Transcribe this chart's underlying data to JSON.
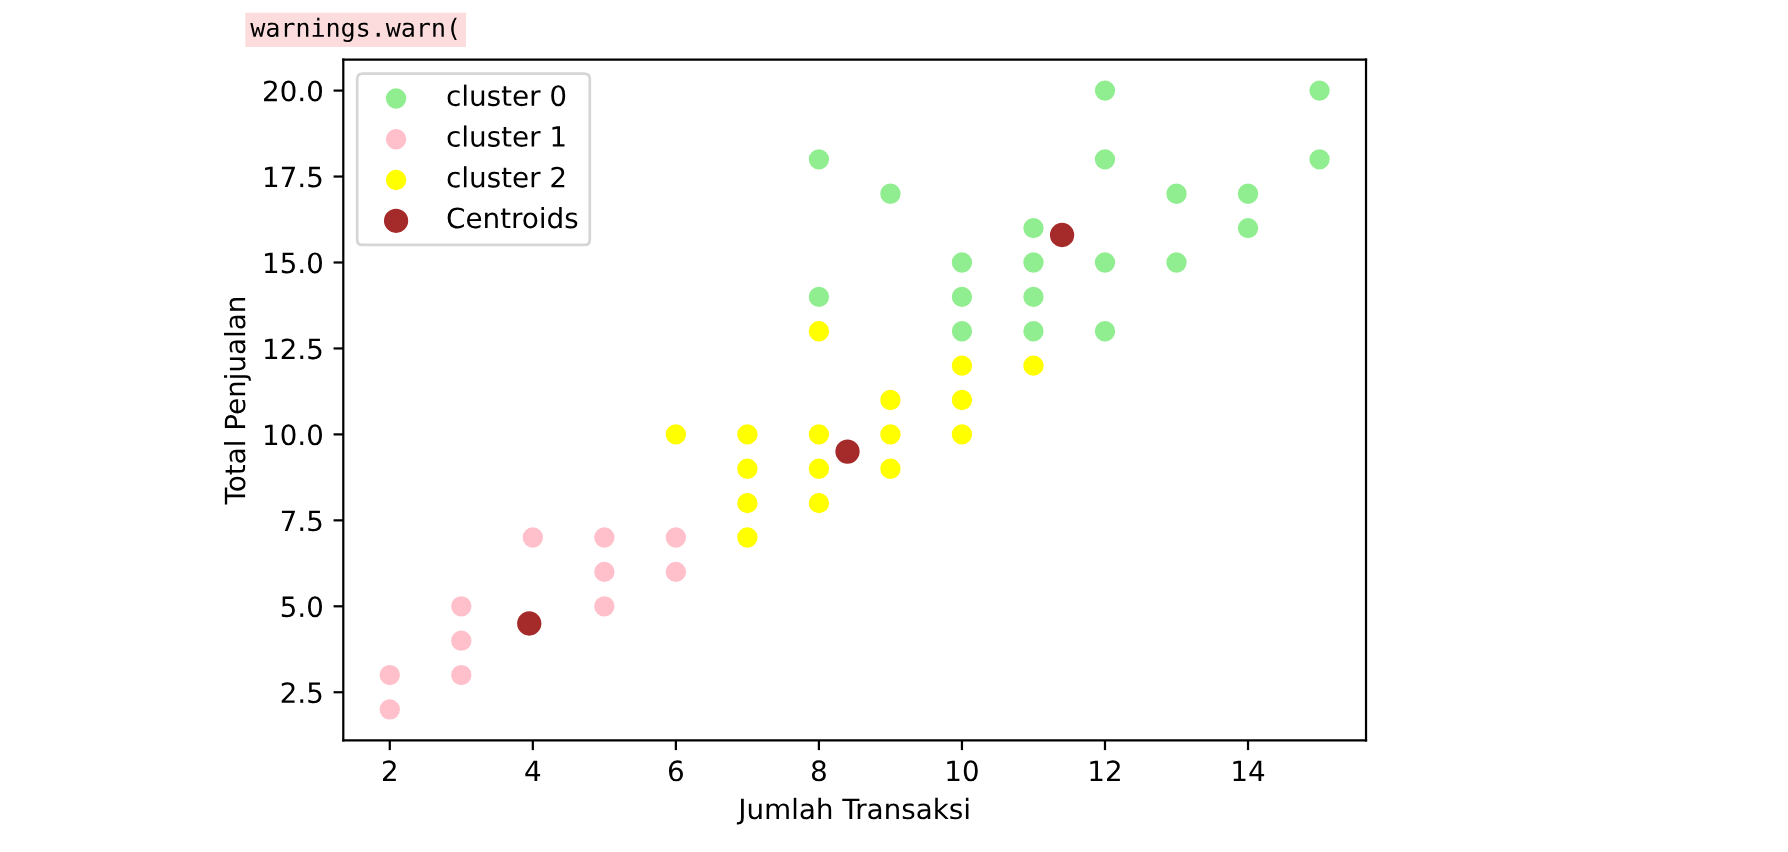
{
  "chart_data": {
    "type": "scatter",
    "xlabel": "Jumlah Transaksi",
    "ylabel": "Total Penjualan",
    "annotations": [
      "warnings.warn("
    ],
    "series": [
      {
        "name": "cluster 0",
        "color": "#90ee90",
        "x": [
          8,
          8,
          9,
          10,
          10,
          10,
          11,
          11,
          11,
          11,
          12,
          12,
          12,
          12,
          13,
          13,
          14,
          14,
          15,
          15
        ],
        "values": [
          18,
          14,
          17,
          15,
          14,
          13,
          16,
          15,
          14,
          13,
          20,
          18,
          15,
          13,
          17,
          15,
          17,
          16,
          20,
          18
        ]
      },
      {
        "name": "cluster 1",
        "color": "#ffc0cb",
        "x": [
          2,
          2,
          3,
          3,
          3,
          4,
          5,
          5,
          5,
          6,
          6
        ],
        "values": [
          3,
          2,
          5,
          4,
          3,
          7,
          7,
          6,
          5,
          7,
          6
        ]
      },
      {
        "name": "cluster 2",
        "color": "#ffff00",
        "x": [
          6,
          7,
          7,
          7,
          7,
          8,
          8,
          8,
          8,
          9,
          9,
          9,
          10,
          10,
          10,
          11
        ],
        "values": [
          10,
          10,
          9,
          8,
          7,
          13,
          10,
          9,
          8,
          11,
          10,
          9,
          12,
          11,
          10,
          12
        ]
      },
      {
        "name": "Centroids",
        "color": "#a52a2a",
        "x": [
          3.95,
          8.4,
          11.4
        ],
        "values": [
          4.5,
          9.5,
          15.8
        ]
      }
    ],
    "xlim": [
      1.35,
      15.65
    ],
    "ylim": [
      1.1,
      20.9
    ],
    "xticks": [
      2,
      4,
      6,
      8,
      10,
      12,
      14
    ],
    "yticks": [
      2.5,
      {
        "value": 5,
        "label": "5.0"
      },
      7.5,
      {
        "value": 10,
        "label": "10.0"
      },
      12.5,
      {
        "value": 15,
        "label": "15.0"
      },
      17.5,
      {
        "value": 20,
        "label": "20.0"
      }
    ],
    "marker": "circle",
    "legend": "top left",
    "grid": false
  }
}
